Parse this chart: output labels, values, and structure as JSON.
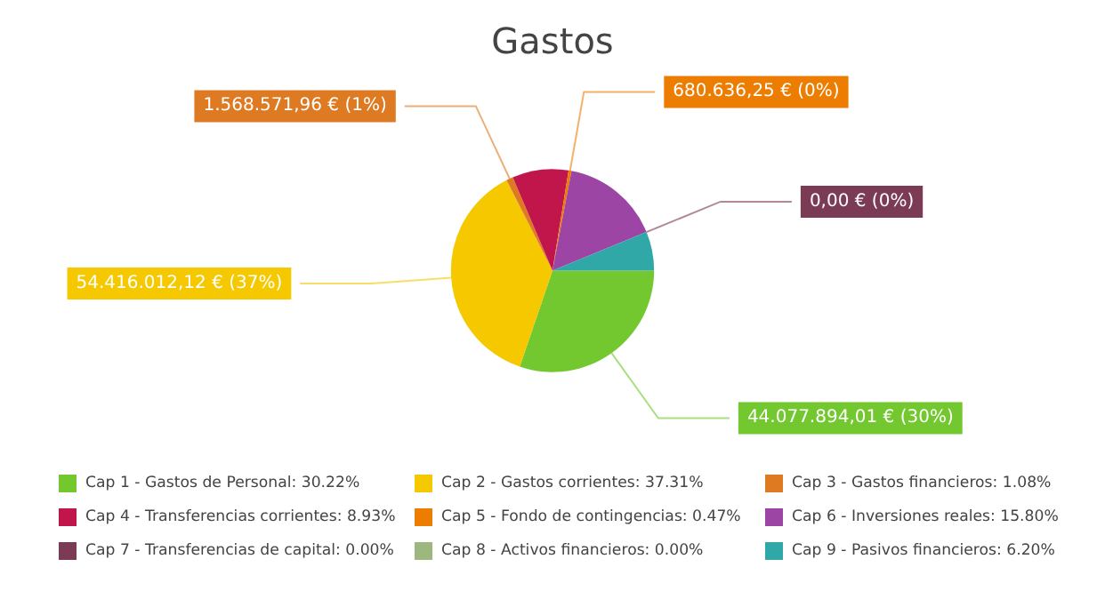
{
  "chart_data": {
    "type": "pie",
    "title": "Gastos",
    "categories": [
      "Cap 1 - Gastos de Personal: 30.22%",
      "Cap 2 - Gastos corrientes: 37.31%",
      "Cap 3 - Gastos financieros: 1.08%",
      "Cap 4 - Transferencias corrientes: 8.93%",
      "Cap 5 - Fondo de contingencias: 0.47%",
      "Cap 6 - Inversiones reales: 15.80%",
      "Cap 7 - Transferencias de capital: 0.00%",
      "Cap 8 - Activos financieros: 0.00%",
      "Cap 9 - Pasivos financieros: 6.20%"
    ],
    "values": [
      30.22,
      37.31,
      1.08,
      8.93,
      0.47,
      15.8,
      0.0,
      0.0,
      6.2
    ],
    "colors": [
      "#72c82e",
      "#f5c800",
      "#de7a22",
      "#c0164c",
      "#ec7d00",
      "#9c45a4",
      "#7b3b55",
      "#9cb87f",
      "#30a8a8"
    ],
    "value_labels": [
      "44.077.894,01 € (30%)",
      "54.416.012,12 € (37%)",
      "1.568.571,96 € (1%)",
      null,
      "680.636,25 € (0%)",
      null,
      "0,00 € (0%)",
      null,
      null
    ],
    "legend": "bottom"
  }
}
